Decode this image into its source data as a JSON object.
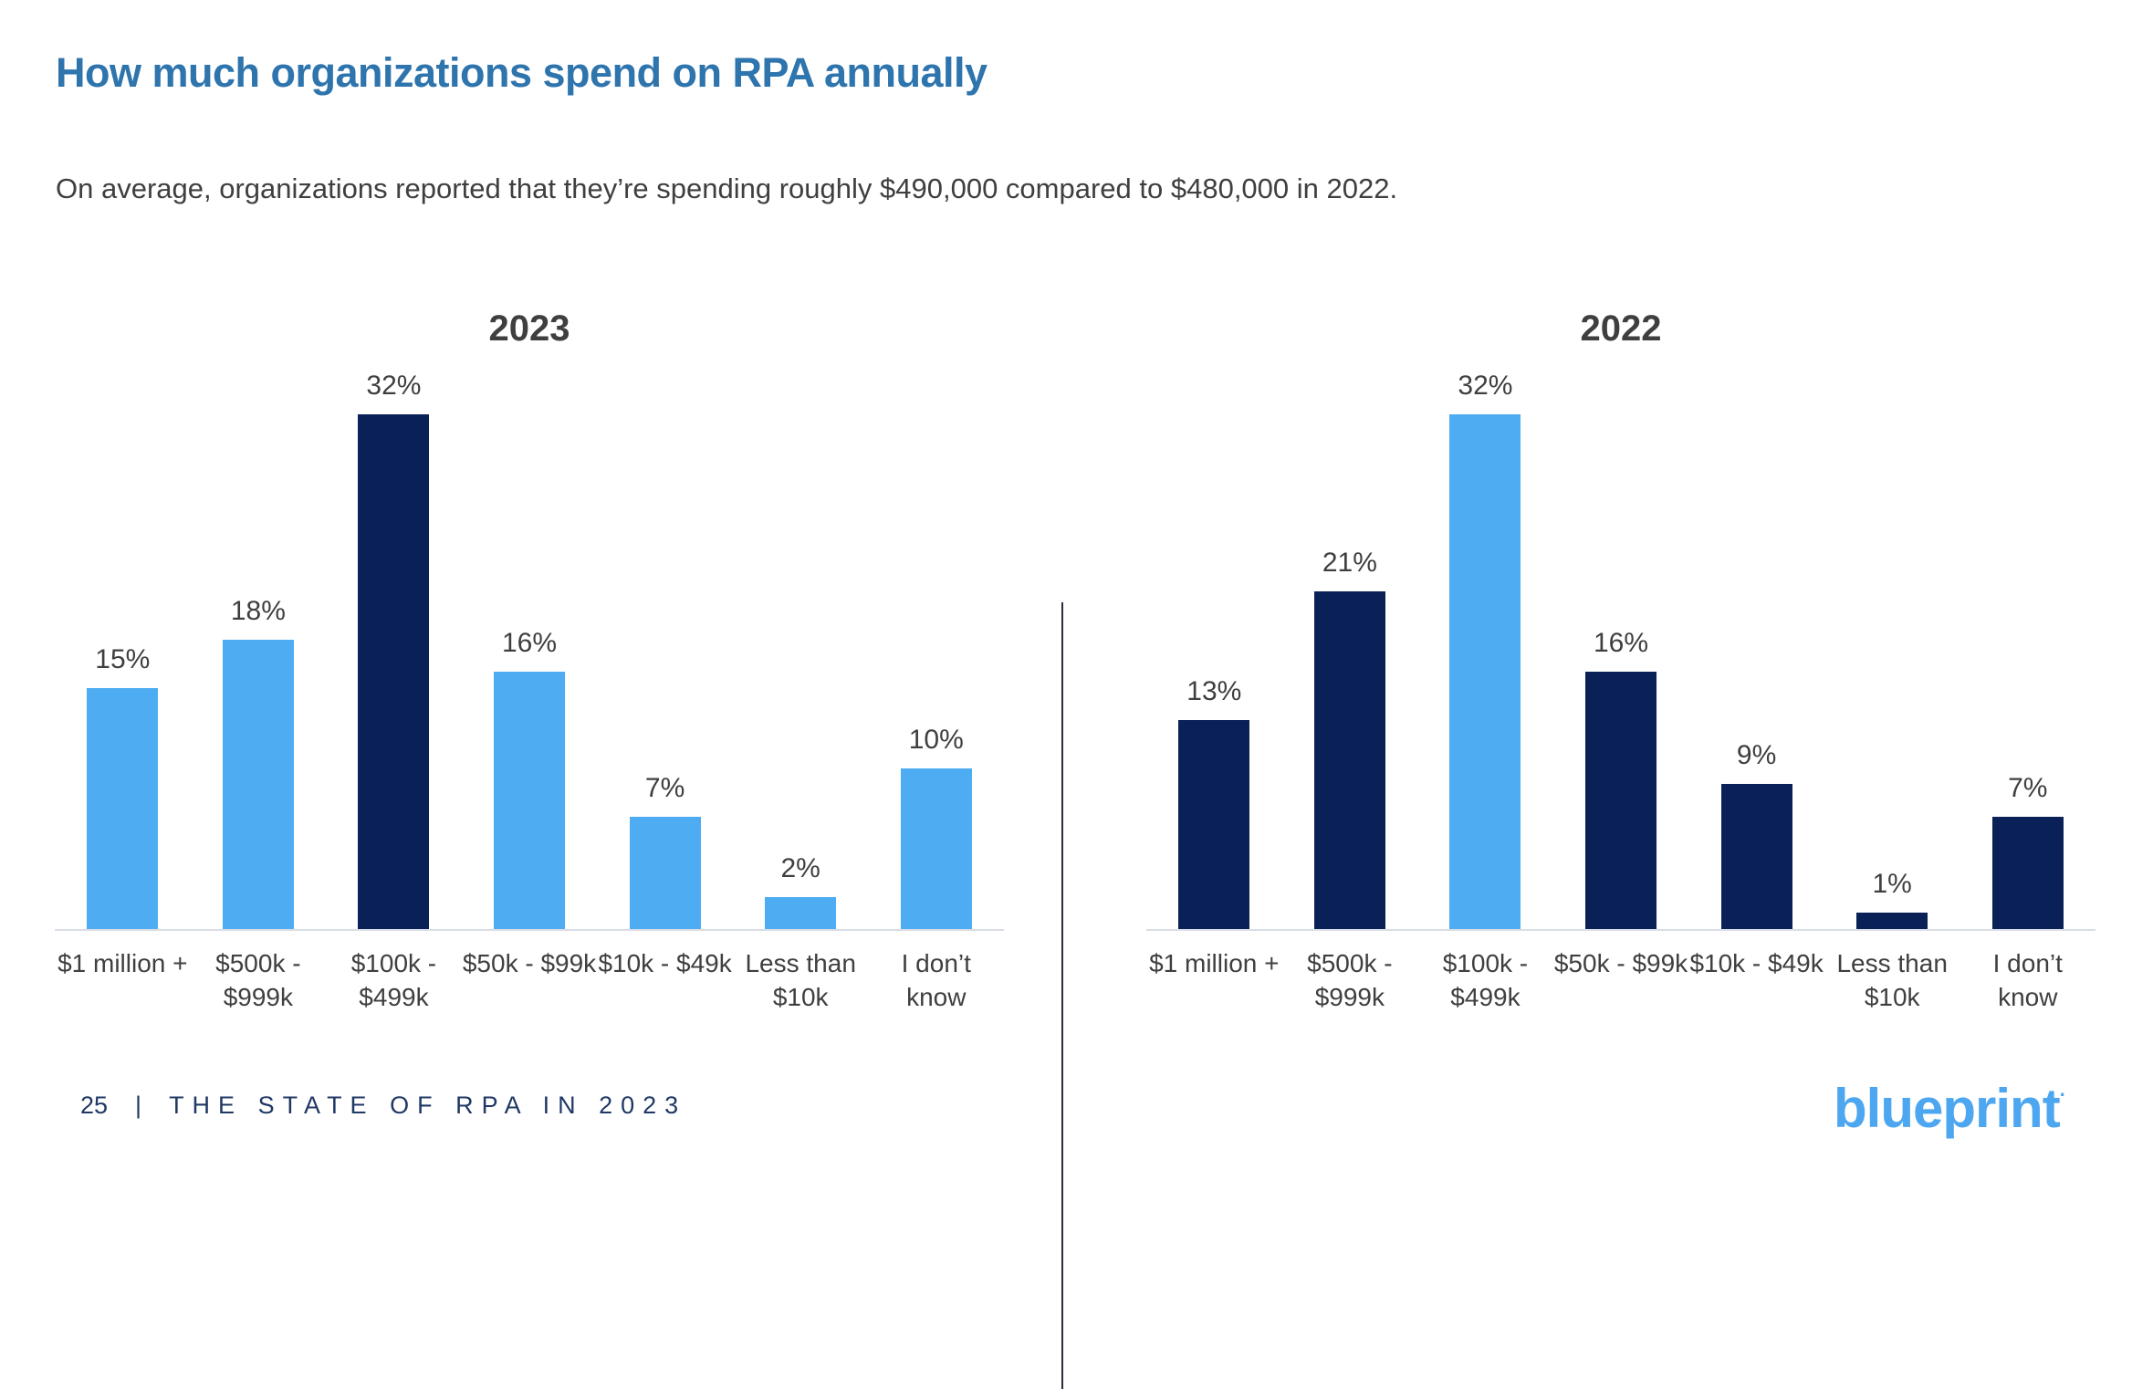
{
  "page": {
    "title": "How much organizations spend on RPA annually",
    "subtitle": "On average, organizations reported that they’re spending roughly $490,000 compared to $480,000 in 2022.",
    "footer": {
      "page_number": "25",
      "separator": "|",
      "report_title": "THE STATE OF RPA IN 2023"
    },
    "logo": {
      "text": "blueprint",
      "mark": "·"
    }
  },
  "palette": {
    "light_blue": "#4DACF2",
    "navy": "#0A2158",
    "title_blue": "#2E74AD",
    "text_dark": "#3F3F3F",
    "axis_line": "#D9DDE6",
    "divider": "#2B2B40",
    "footer_navy": "#1F3864",
    "logo_blue": "#4DA6F0"
  },
  "chart_data": [
    {
      "type": "bar",
      "title": "2023",
      "categories": [
        "$1 million +",
        "$500k -\n$999k",
        "$100k -\n$499k",
        "$50k - $99k",
        "$10k - $49k",
        "Less than\n$10k",
        "I don’t\nknow"
      ],
      "values": [
        15,
        18,
        32,
        16,
        7,
        2,
        10
      ],
      "value_labels": [
        "15%",
        "18%",
        "32%",
        "16%",
        "7%",
        "2%",
        "10%"
      ],
      "bar_colors": [
        "light_blue",
        "light_blue",
        "navy",
        "light_blue",
        "light_blue",
        "light_blue",
        "light_blue"
      ],
      "xlabel": "",
      "ylabel": "",
      "ylim": [
        0,
        35
      ],
      "grid": false,
      "legend": "none",
      "value_label_suffix": "%"
    },
    {
      "type": "bar",
      "title": "2022",
      "categories": [
        "$1 million +",
        "$500k -\n$999k",
        "$100k -\n$499k",
        "$50k - $99k",
        "$10k - $49k",
        "Less than\n$10k",
        "I don’t\nknow"
      ],
      "values": [
        13,
        21,
        32,
        16,
        9,
        1,
        7
      ],
      "value_labels": [
        "13%",
        "21%",
        "32%",
        "16%",
        "9%",
        "1%",
        "7%"
      ],
      "bar_colors": [
        "navy",
        "navy",
        "light_blue",
        "navy",
        "navy",
        "navy",
        "navy"
      ],
      "xlabel": "",
      "ylabel": "",
      "ylim": [
        0,
        35
      ],
      "grid": false,
      "legend": "none",
      "value_label_suffix": "%"
    }
  ]
}
